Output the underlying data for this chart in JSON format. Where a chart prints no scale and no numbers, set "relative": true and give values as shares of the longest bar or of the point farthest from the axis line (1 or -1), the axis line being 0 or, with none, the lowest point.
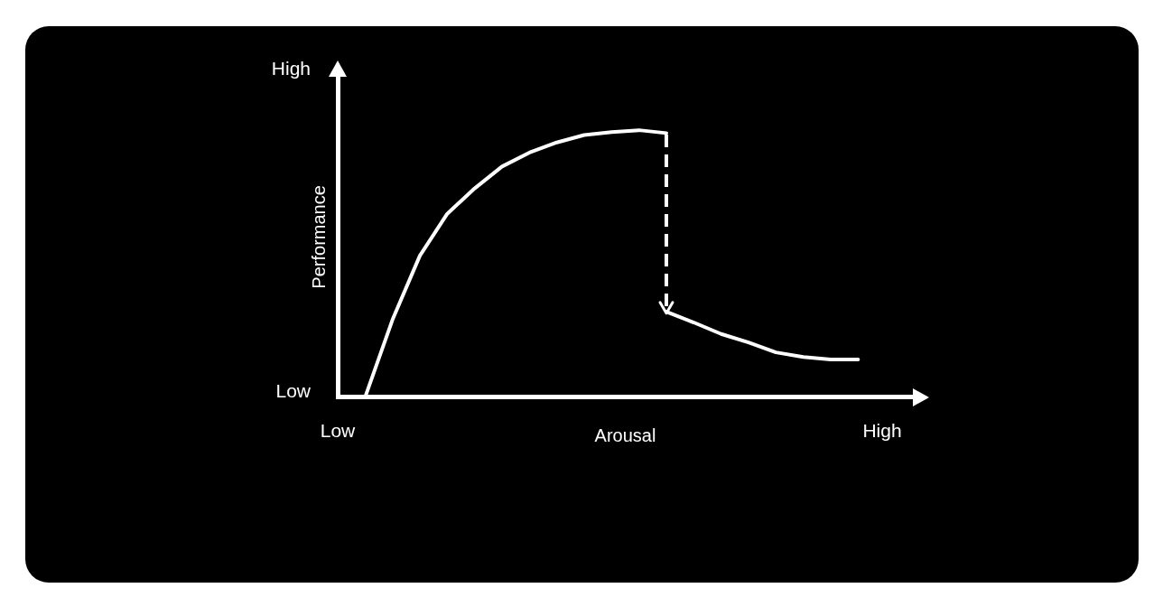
{
  "chart_data": {
    "type": "line",
    "xlabel": "Arousal",
    "ylabel": "Performance",
    "relative": true,
    "annotations": [
      "High",
      "Low",
      "Low",
      "High"
    ],
    "grid": false,
    "legend": false,
    "marker": "none",
    "categories": [
      null,
      null,
      null,
      null,
      null,
      null,
      null,
      null,
      null,
      null,
      null,
      null,
      null,
      null,
      null,
      null,
      null,
      null,
      null,
      null,
      null,
      null
    ],
    "series": [
      {
        "color": "#ffffff",
        "line_style": "solid",
        "values": [
          null,
          0,
          0.29,
          0.53,
          0.687,
          0.782,
          0.864,
          0.916,
          0.954,
          0.982,
          0.993,
          1,
          0.989,
          null,
          null,
          null,
          null,
          null,
          null,
          null,
          null,
          null
        ]
      },
      {
        "color": "#ffffff",
        "line_style": "solid",
        "values": [
          null,
          null,
          null,
          null,
          null,
          null,
          null,
          null,
          null,
          null,
          null,
          null,
          0.32,
          0.28,
          0.237,
          0.205,
          0.168,
          0.151,
          0.141,
          0.141,
          null,
          null
        ]
      }
    ]
  }
}
